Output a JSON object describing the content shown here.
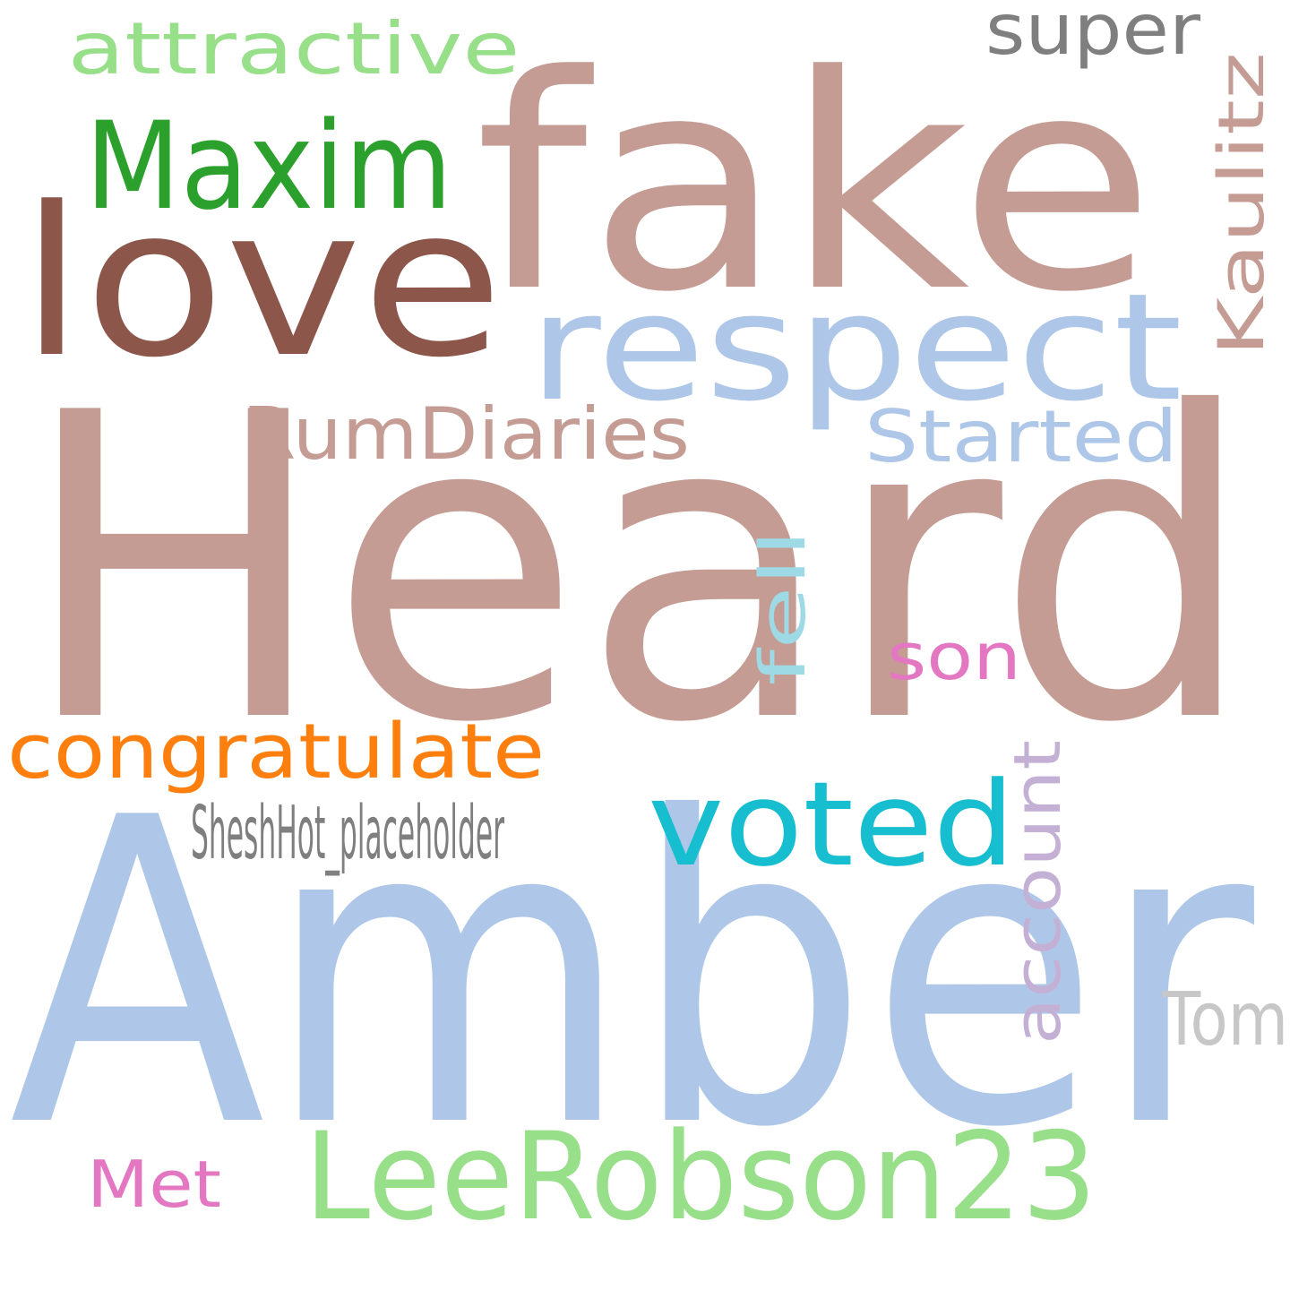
{
  "words": [
    {
      "text": "Heard",
      "color": "#c49c94"
    },
    {
      "text": "Amber",
      "color": "#aec7e8"
    },
    {
      "text": "fake",
      "color": "#c49c94"
    },
    {
      "text": "love",
      "color": "#8c564b"
    },
    {
      "text": "respect",
      "color": "#aec7e8"
    },
    {
      "text": "LeeRobson23",
      "color": "#98df8a"
    },
    {
      "text": "Maxim",
      "color": "#2ca02c"
    },
    {
      "text": "voted",
      "color": "#17becf"
    },
    {
      "text": "congratulate",
      "color": "#ff7f0e"
    },
    {
      "text": "RumDiaries",
      "color": "#c49c94"
    },
    {
      "text": "Started",
      "color": "#aec7e8"
    },
    {
      "text": "attractive",
      "color": "#98df8a"
    },
    {
      "text": "SheshHot_placeholder",
      "color": "#7f7f7f"
    },
    {
      "text": "account",
      "color": "#c5b0d5"
    },
    {
      "text": "Kaulitz",
      "color": "#c49c94"
    },
    {
      "text": "super",
      "color": "#7f7f7f"
    },
    {
      "text": "Tom",
      "color": "#c7c7c7"
    },
    {
      "text": "fell",
      "color": "#9edae5"
    },
    {
      "text": "son",
      "color": "#e377c2"
    },
    {
      "text": "Met",
      "color": "#e377c2"
    }
  ]
}
